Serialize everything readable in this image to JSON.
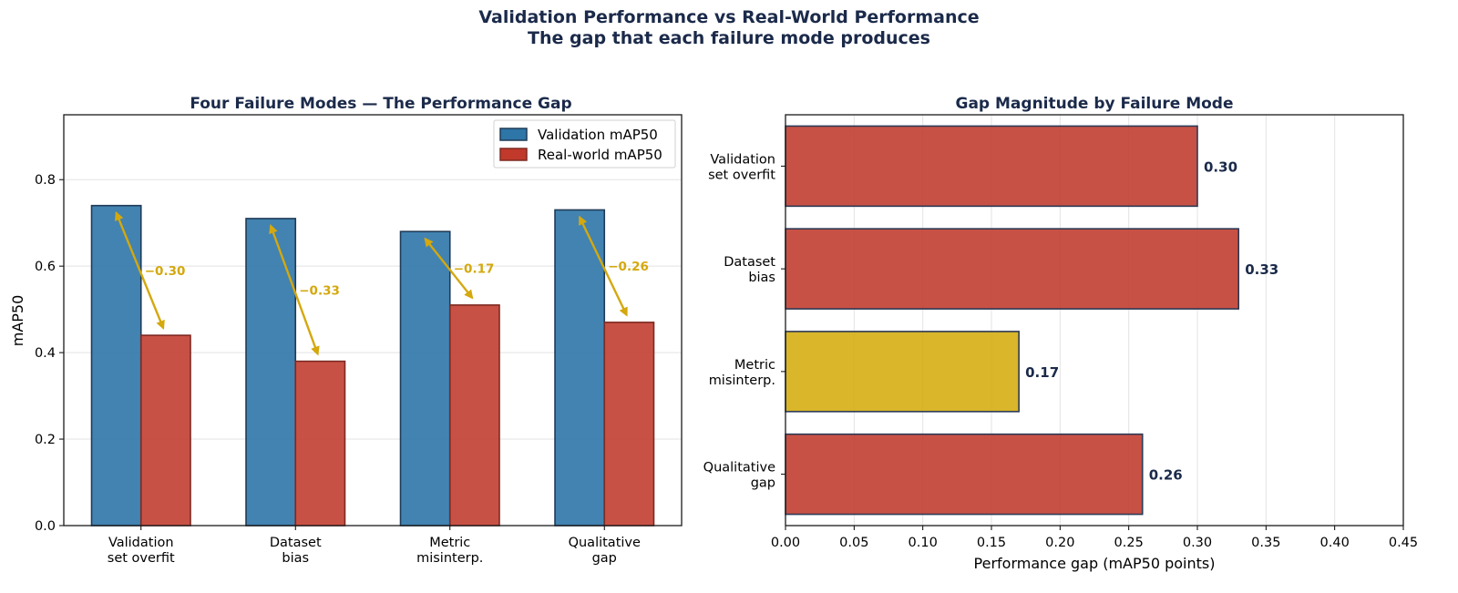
{
  "suptitle": {
    "line1": "Validation Performance vs Real-World Performance",
    "line2": "The gap that each failure mode produces"
  },
  "colors": {
    "validation": "#2e75a8",
    "real_world": "#c0392b",
    "arrow": "#d4a80e",
    "gap_highlight": "#d4ac0d",
    "title": "#1b2a4a"
  },
  "chart_data": [
    {
      "type": "bar",
      "title": "Four Failure Modes — The Performance Gap",
      "categories": [
        [
          "Validation",
          "set overfit"
        ],
        [
          "Dataset",
          "bias"
        ],
        [
          "Metric",
          "misinterp."
        ],
        [
          "Qualitative",
          "gap"
        ]
      ],
      "series": [
        {
          "name": "Validation mAP50",
          "values": [
            0.74,
            0.71,
            0.68,
            0.73
          ]
        },
        {
          "name": "Real-world mAP50",
          "values": [
            0.44,
            0.38,
            0.51,
            0.47
          ]
        }
      ],
      "gap_labels": [
        "−0.30",
        "−0.33",
        "−0.17",
        "−0.26"
      ],
      "xlabel": "",
      "ylabel": "mAP50",
      "ylim": [
        0,
        0.95
      ],
      "yticks": [
        "0.0",
        "0.2",
        "0.4",
        "0.6",
        "0.8"
      ],
      "ytick_values": [
        0,
        0.2,
        0.4,
        0.6,
        0.8
      ],
      "grid": "y",
      "legend": "top-right"
    },
    {
      "type": "bar",
      "orientation": "horizontal",
      "title": "Gap Magnitude by Failure Mode",
      "categories": [
        [
          "Validation",
          "set overfit"
        ],
        [
          "Dataset",
          "bias"
        ],
        [
          "Metric",
          "misinterp."
        ],
        [
          "Qualitative",
          "gap"
        ]
      ],
      "values": [
        0.3,
        0.33,
        0.17,
        0.26
      ],
      "value_labels": [
        "0.30",
        "0.33",
        "0.17",
        "0.26"
      ],
      "highlight_index": 2,
      "xlabel": "Performance gap (mAP50 points)",
      "ylabel": "",
      "xlim": [
        0,
        0.45
      ],
      "xticks": [
        "0.00",
        "0.05",
        "0.10",
        "0.15",
        "0.20",
        "0.25",
        "0.30",
        "0.35",
        "0.40",
        "0.45"
      ],
      "xtick_values": [
        0,
        0.05,
        0.1,
        0.15,
        0.2,
        0.25,
        0.3,
        0.35,
        0.4,
        0.45
      ],
      "grid": "x"
    }
  ]
}
